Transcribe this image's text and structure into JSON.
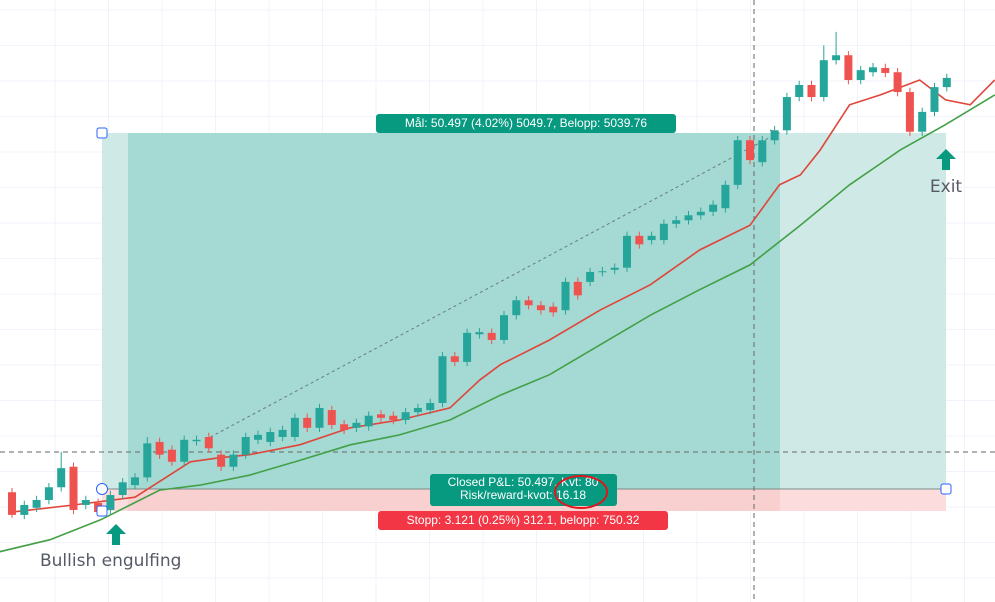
{
  "chart_data": {
    "type": "candlestick",
    "up_color": "#26a69a",
    "down_color": "#ef5350",
    "ylim": [
      1240,
      1325
    ],
    "ohlc": [
      [
        1255.5,
        1256.1,
        1251.9,
        1252.3
      ],
      [
        1252.3,
        1254.3,
        1251.7,
        1253.7
      ],
      [
        1253.3,
        1255.0,
        1252.7,
        1254.4
      ],
      [
        1254.4,
        1256.8,
        1253.8,
        1256.2
      ],
      [
        1256.2,
        1261.2,
        1255.6,
        1258.9
      ],
      [
        1259.1,
        1259.7,
        1252.4,
        1253.0
      ],
      [
        1253.7,
        1255.0,
        1253.1,
        1254.4
      ],
      [
        1254.0,
        1254.6,
        1252.1,
        1252.7
      ],
      [
        1253.0,
        1255.7,
        1252.4,
        1255.1
      ],
      [
        1255.1,
        1257.5,
        1254.5,
        1256.9
      ],
      [
        1256.5,
        1258.2,
        1255.9,
        1257.6
      ],
      [
        1257.6,
        1263.3,
        1257.0,
        1262.4
      ],
      [
        1262.6,
        1263.2,
        1260.2,
        1260.8
      ],
      [
        1261.5,
        1262.1,
        1259.2,
        1259.8
      ],
      [
        1259.8,
        1263.5,
        1259.2,
        1262.9
      ],
      [
        1262.7,
        1263.5,
        1262.1,
        1262.9
      ],
      [
        1263.3,
        1263.9,
        1261.1,
        1261.7
      ],
      [
        1260.8,
        1261.4,
        1258.5,
        1259.1
      ],
      [
        1259.1,
        1261.4,
        1258.5,
        1260.8
      ],
      [
        1260.8,
        1263.9,
        1260.2,
        1263.3
      ],
      [
        1262.9,
        1264.2,
        1262.3,
        1263.6
      ],
      [
        1262.6,
        1264.6,
        1262.0,
        1264.0
      ],
      [
        1263.3,
        1264.9,
        1262.7,
        1264.3
      ],
      [
        1263.3,
        1266.6,
        1262.7,
        1266.0
      ],
      [
        1266.0,
        1266.6,
        1264.0,
        1264.6
      ],
      [
        1264.6,
        1268.0,
        1264.0,
        1267.4
      ],
      [
        1267.1,
        1267.7,
        1264.4,
        1265.0
      ],
      [
        1265.1,
        1265.7,
        1263.7,
        1264.3
      ],
      [
        1264.6,
        1265.9,
        1264.0,
        1265.3
      ],
      [
        1264.8,
        1266.9,
        1264.2,
        1266.3
      ],
      [
        1266.5,
        1267.1,
        1265.4,
        1266.0
      ],
      [
        1266.3,
        1266.9,
        1265.1,
        1265.7
      ],
      [
        1265.7,
        1267.4,
        1265.1,
        1266.8
      ],
      [
        1266.8,
        1268.0,
        1266.2,
        1267.4
      ],
      [
        1267.1,
        1268.7,
        1266.5,
        1268.1
      ],
      [
        1268.1,
        1275.3,
        1267.5,
        1274.7
      ],
      [
        1274.7,
        1275.3,
        1273.3,
        1273.9
      ],
      [
        1273.9,
        1278.6,
        1273.3,
        1278.0
      ],
      [
        1277.8,
        1278.7,
        1277.2,
        1278.1
      ],
      [
        1278.0,
        1278.6,
        1276.4,
        1277.0
      ],
      [
        1277.0,
        1281.1,
        1276.4,
        1280.5
      ],
      [
        1280.5,
        1283.2,
        1279.9,
        1282.6
      ],
      [
        1282.6,
        1283.2,
        1281.3,
        1281.9
      ],
      [
        1281.9,
        1282.5,
        1280.6,
        1281.2
      ],
      [
        1281.7,
        1282.3,
        1280.3,
        1280.9
      ],
      [
        1281.2,
        1285.8,
        1280.6,
        1285.2
      ],
      [
        1285.2,
        1285.8,
        1282.7,
        1283.3
      ],
      [
        1285.2,
        1287.2,
        1284.6,
        1286.6
      ],
      [
        1286.6,
        1287.3,
        1286.0,
        1286.7
      ],
      [
        1286.9,
        1287.8,
        1286.3,
        1287.2
      ],
      [
        1287.2,
        1292.3,
        1286.6,
        1291.7
      ],
      [
        1291.7,
        1292.3,
        1289.9,
        1290.5
      ],
      [
        1291.1,
        1292.3,
        1290.5,
        1291.7
      ],
      [
        1291.1,
        1294.0,
        1290.5,
        1293.4
      ],
      [
        1293.4,
        1294.5,
        1292.8,
        1293.9
      ],
      [
        1293.9,
        1295.2,
        1293.3,
        1294.6
      ],
      [
        1294.6,
        1295.7,
        1294.0,
        1295.1
      ],
      [
        1295.1,
        1296.7,
        1294.5,
        1296.1
      ],
      [
        1295.6,
        1299.5,
        1295.0,
        1298.9
      ],
      [
        1298.9,
        1305.8,
        1298.3,
        1305.2
      ],
      [
        1305.2,
        1305.8,
        1301.8,
        1302.4
      ],
      [
        1302.1,
        1305.8,
        1301.5,
        1305.2
      ],
      [
        1305.2,
        1307.2,
        1304.6,
        1306.6
      ],
      [
        1306.6,
        1311.9,
        1306.0,
        1311.3
      ],
      [
        1311.3,
        1313.6,
        1310.7,
        1313.0
      ],
      [
        1313.0,
        1313.6,
        1310.7,
        1311.3
      ],
      [
        1311.3,
        1318.6,
        1310.7,
        1316.5
      ],
      [
        1316.5,
        1320.5,
        1315.9,
        1317.2
      ],
      [
        1317.2,
        1317.8,
        1313.1,
        1313.7
      ],
      [
        1313.7,
        1315.7,
        1313.1,
        1315.1
      ],
      [
        1314.8,
        1316.1,
        1314.2,
        1315.5
      ],
      [
        1315.4,
        1316.0,
        1314.1,
        1314.7
      ],
      [
        1314.8,
        1315.4,
        1311.4,
        1312.0
      ],
      [
        1312.0,
        1312.6,
        1305.8,
        1306.4
      ],
      [
        1306.4,
        1309.8,
        1305.8,
        1309.2
      ],
      [
        1309.2,
        1313.3,
        1308.6,
        1312.7
      ],
      [
        1312.7,
        1314.6,
        1312.1,
        1314.0
      ]
    ],
    "lines": [
      {
        "color": "#e0453a",
        "x": [
          0,
          5,
          10,
          14.5,
          16.6,
          19.3,
          23.4,
          27.5,
          31.5,
          35.6,
          38,
          39.7,
          43.7,
          47.8,
          51.9,
          55.9,
          60,
          62.4,
          64.1,
          65.7,
          68.1,
          70.6,
          73.8,
          75.9,
          77.9,
          79.9
        ],
        "values": [
          1252.7,
          1253.7,
          1254.8,
          1259.8,
          1260.3,
          1260.8,
          1262.2,
          1264.6,
          1265.7,
          1267.4,
          1271.3,
          1273.5,
          1277.0,
          1281.2,
          1284.8,
          1289.7,
          1293.2,
          1298.9,
          1300.3,
          1303.8,
          1310.2,
          1311.6,
          1313.7,
          1310.9,
          1310.2,
          1313.7
        ]
      },
      {
        "color": "#43a047",
        "x": [
          -1,
          3.1,
          7.2,
          9.6,
          12,
          15.3,
          19.3,
          23.4,
          27.5,
          31.5,
          35.6,
          39.7,
          43.7,
          47.8,
          51.9,
          55.9,
          60,
          64.1,
          68.1,
          72.2,
          75.9,
          79.9
        ],
        "values": [
          1247.1,
          1248.8,
          1251.6,
          1253.7,
          1255.8,
          1256.5,
          1257.9,
          1260.0,
          1262.2,
          1263.6,
          1265.7,
          1269.2,
          1272.1,
          1276.3,
          1280.5,
          1284.1,
          1287.6,
          1293.2,
          1298.9,
          1303.8,
          1307.4,
          1311.6
        ]
      }
    ],
    "target_label": "Mål: 50.497 (4.02%) 5049.7, Belopp: 5039.76",
    "closed_label": "Closed P&L: 50.497, Kvt: 80",
    "risk_reward_label": "Risk/reward-kvot: 16.18",
    "stop_label": "Stopp: 3.121 (0.25%) 312.1, belopp: 750.32",
    "entry_note": "Bullish engulfing",
    "exit_note": "Exit"
  }
}
